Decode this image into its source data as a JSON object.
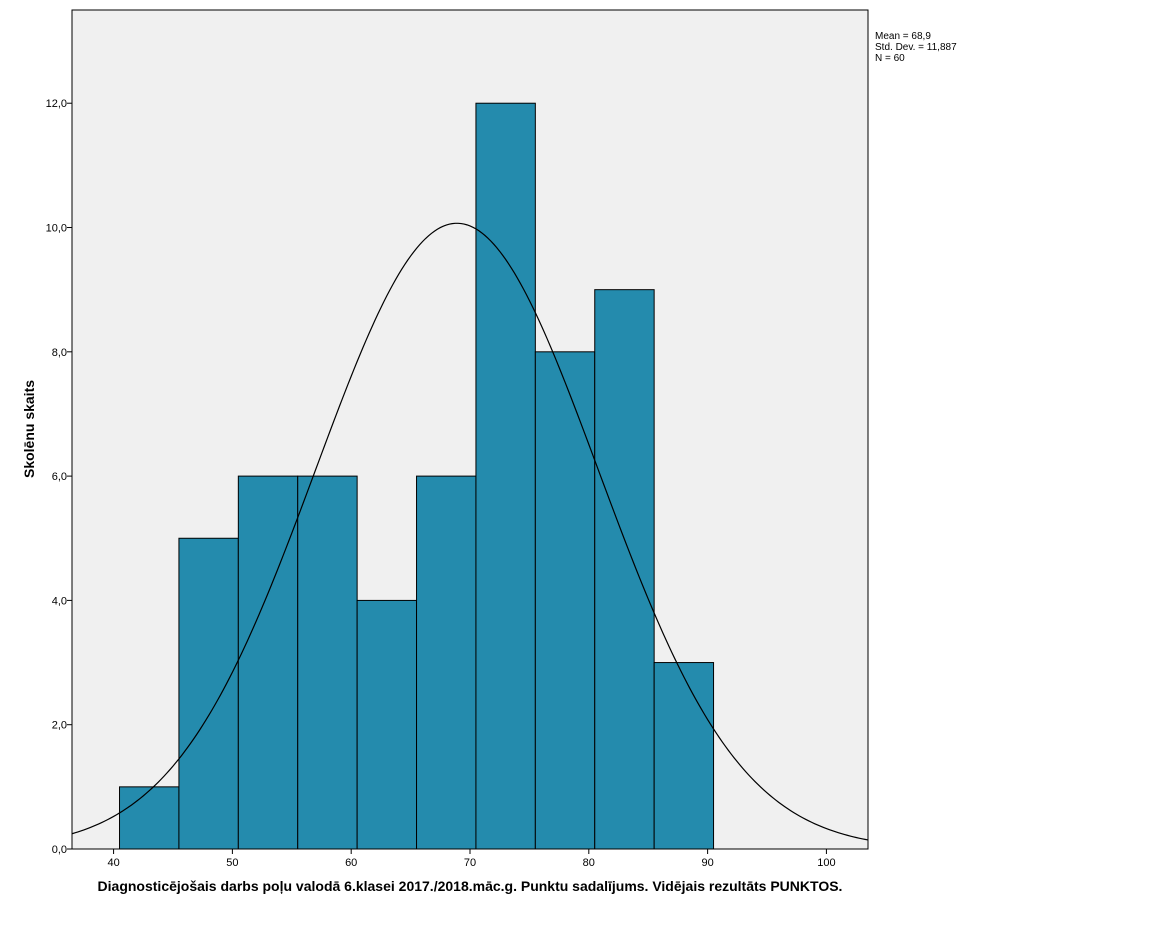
{
  "chart_data": {
    "type": "bar",
    "subtype": "histogram",
    "xlabel": "Diagnosticējošais darbs poļu valodā 6.klasei 2017./2018.māc.g. Punktu sadalījums. Vidējais rezultāts PUNKTOS.",
    "ylabel": "Skolēnu skaits",
    "xlim": [
      36.5,
      103.5
    ],
    "ylim": [
      0,
      13.5
    ],
    "x_ticks": [
      40,
      50,
      60,
      70,
      80,
      90,
      100
    ],
    "x_tick_labels": [
      "40",
      "50",
      "60",
      "70",
      "80",
      "90",
      "100"
    ],
    "y_ticks": [
      0,
      2,
      4,
      6,
      8,
      10,
      12
    ],
    "y_tick_labels": [
      "0,0",
      "2,0",
      "4,0",
      "6,0",
      "8,0",
      "10,0",
      "12,0"
    ],
    "bins": [
      {
        "x0": 40.5,
        "x1": 45.5,
        "count": 1
      },
      {
        "x0": 45.5,
        "x1": 50.5,
        "count": 5
      },
      {
        "x0": 50.5,
        "x1": 55.5,
        "count": 6
      },
      {
        "x0": 55.5,
        "x1": 60.5,
        "count": 6
      },
      {
        "x0": 60.5,
        "x1": 65.5,
        "count": 4
      },
      {
        "x0": 65.5,
        "x1": 70.5,
        "count": 6
      },
      {
        "x0": 70.5,
        "x1": 75.5,
        "count": 12
      },
      {
        "x0": 75.5,
        "x1": 80.5,
        "count": 8
      },
      {
        "x0": 80.5,
        "x1": 85.5,
        "count": 9
      },
      {
        "x0": 85.5,
        "x1": 90.5,
        "count": 3
      }
    ],
    "normal_curve": {
      "mean": 68.9,
      "std_dev": 11.887,
      "n": 60,
      "bin_width": 5
    },
    "grid": false,
    "legend": "none",
    "colors": {
      "bar_fill": "#248bad",
      "bar_stroke": "#000000",
      "plot_background": "#f0f0f0",
      "curve": "#000000"
    }
  },
  "stats": {
    "mean": "Mean = 68,9",
    "std_dev": "Std. Dev. = 11,887",
    "n": "N = 60"
  }
}
